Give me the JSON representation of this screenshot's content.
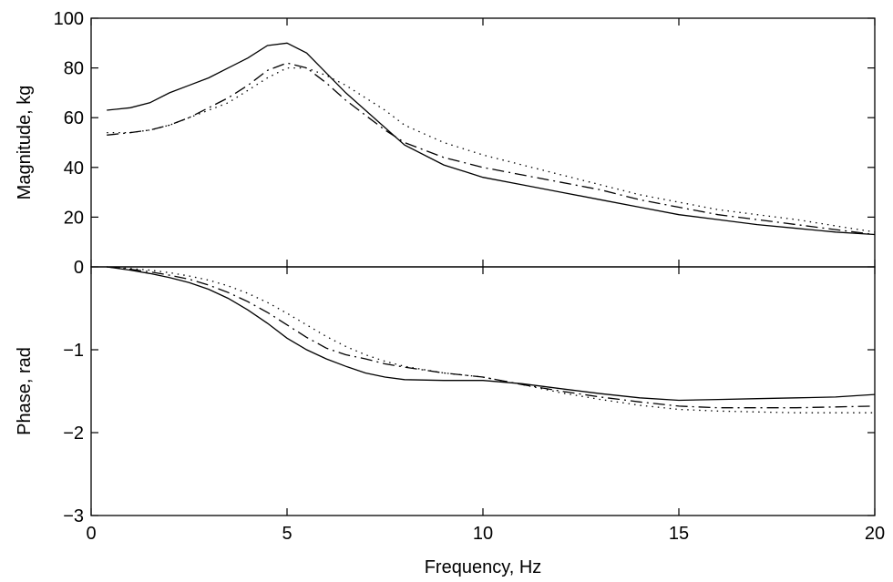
{
  "chart_data": [
    {
      "id": "magnitude",
      "type": "line",
      "ylabel": "Magnitude, kg",
      "xlim": [
        0,
        20
      ],
      "ylim": [
        0,
        100
      ],
      "xticks": [
        0,
        5,
        10,
        15,
        20
      ],
      "yticks": [
        0,
        20,
        40,
        60,
        80,
        100
      ],
      "yticklabels": [
        "0",
        "20",
        "40",
        "60",
        "80",
        "100"
      ],
      "series": [
        {
          "style": "solid",
          "x": [
            0.4,
            1.0,
            1.5,
            2.0,
            2.5,
            3.0,
            3.5,
            4.0,
            4.5,
            5.0,
            5.5,
            6.0,
            6.5,
            7.0,
            7.5,
            8.0,
            9.0,
            10.0,
            11.0,
            12.0,
            13.0,
            14.0,
            15.0,
            16.0,
            17.0,
            18.0,
            19.0,
            20.0
          ],
          "y": [
            63,
            64,
            66,
            70,
            73,
            76,
            80,
            84,
            89,
            90,
            86,
            78,
            70,
            63,
            56,
            49,
            41,
            36,
            33,
            30,
            27,
            24,
            21,
            19,
            17,
            15.5,
            14,
            13
          ]
        },
        {
          "style": "dashdot",
          "x": [
            0.4,
            1.0,
            1.5,
            2.0,
            2.5,
            3.0,
            3.5,
            4.0,
            4.5,
            5.0,
            5.5,
            6.0,
            6.5,
            7.0,
            7.5,
            8.0,
            9.0,
            10.0,
            11.0,
            12.0,
            13.0,
            14.0,
            15.0,
            16.0,
            17.0,
            18.0,
            19.0,
            20.0
          ],
          "y": [
            53,
            54,
            55,
            57,
            60,
            64,
            68,
            73,
            79,
            82,
            80,
            74,
            67,
            61,
            55,
            50,
            44,
            40,
            37,
            34,
            31,
            27,
            24,
            21,
            19,
            17,
            15,
            13
          ]
        },
        {
          "style": "dotted",
          "x": [
            0.4,
            1.0,
            1.5,
            2.0,
            2.5,
            3.0,
            3.5,
            4.0,
            4.5,
            5.0,
            5.5,
            6.0,
            6.5,
            7.0,
            7.5,
            8.0,
            9.0,
            10.0,
            11.0,
            12.0,
            13.0,
            14.0,
            15.0,
            16.0,
            17.0,
            18.0,
            19.0,
            20.0
          ],
          "y": [
            54,
            54,
            55,
            57,
            60,
            63,
            66,
            71,
            76,
            80,
            80,
            77,
            73,
            68,
            63,
            57,
            50,
            45,
            41,
            37,
            33,
            29,
            26,
            23,
            21,
            19,
            16.5,
            14
          ]
        }
      ]
    },
    {
      "id": "phase",
      "type": "line",
      "xlabel": "Frequency, Hz",
      "ylabel": "Phase, rad",
      "xlim": [
        0,
        20
      ],
      "ylim": [
        -3,
        0
      ],
      "xticks": [
        0,
        5,
        10,
        15,
        20
      ],
      "xticklabels": [
        "0",
        "5",
        "10",
        "15",
        "20"
      ],
      "yticks": [
        -3,
        -2,
        -1
      ],
      "yticklabels": [
        "−3",
        "−2",
        "−1"
      ],
      "series": [
        {
          "style": "solid",
          "x": [
            0.4,
            1.0,
            1.5,
            2.0,
            2.5,
            3.0,
            3.5,
            4.0,
            4.5,
            5.0,
            5.5,
            6.0,
            6.5,
            7.0,
            7.5,
            8.0,
            9.0,
            10.0,
            11.0,
            12.0,
            13.0,
            14.0,
            15.0,
            16.0,
            17.0,
            18.0,
            19.0,
            20.0
          ],
          "y": [
            0,
            -0.04,
            -0.08,
            -0.13,
            -0.19,
            -0.27,
            -0.38,
            -0.52,
            -0.68,
            -0.86,
            -1.0,
            -1.11,
            -1.2,
            -1.28,
            -1.33,
            -1.36,
            -1.37,
            -1.37,
            -1.41,
            -1.47,
            -1.53,
            -1.58,
            -1.61,
            -1.6,
            -1.59,
            -1.58,
            -1.57,
            -1.54
          ]
        },
        {
          "style": "dashdot",
          "x": [
            0.4,
            1.0,
            1.5,
            2.0,
            2.5,
            3.0,
            3.5,
            4.0,
            4.5,
            5.0,
            5.5,
            6.0,
            6.5,
            7.0,
            7.5,
            8.0,
            9.0,
            10.0,
            11.0,
            12.0,
            13.0,
            14.0,
            15.0,
            16.0,
            17.0,
            18.0,
            19.0,
            20.0
          ],
          "y": [
            0,
            -0.03,
            -0.06,
            -0.1,
            -0.15,
            -0.22,
            -0.31,
            -0.42,
            -0.55,
            -0.7,
            -0.85,
            -0.98,
            -1.06,
            -1.11,
            -1.17,
            -1.21,
            -1.28,
            -1.33,
            -1.42,
            -1.5,
            -1.57,
            -1.63,
            -1.68,
            -1.7,
            -1.7,
            -1.7,
            -1.69,
            -1.68
          ]
        },
        {
          "style": "dotted",
          "x": [
            0.4,
            1.0,
            1.5,
            2.0,
            2.5,
            3.0,
            3.5,
            4.0,
            4.5,
            5.0,
            5.5,
            6.0,
            6.5,
            7.0,
            7.5,
            8.0,
            9.0,
            10.0,
            11.0,
            12.0,
            13.0,
            14.0,
            15.0,
            16.0,
            17.0,
            18.0,
            19.0,
            20.0
          ],
          "y": [
            0,
            -0.02,
            -0.04,
            -0.07,
            -0.11,
            -0.16,
            -0.23,
            -0.32,
            -0.43,
            -0.56,
            -0.7,
            -0.84,
            -0.96,
            -1.06,
            -1.14,
            -1.2,
            -1.28,
            -1.33,
            -1.42,
            -1.52,
            -1.6,
            -1.67,
            -1.72,
            -1.74,
            -1.75,
            -1.76,
            -1.76,
            -1.76
          ]
        }
      ]
    }
  ]
}
